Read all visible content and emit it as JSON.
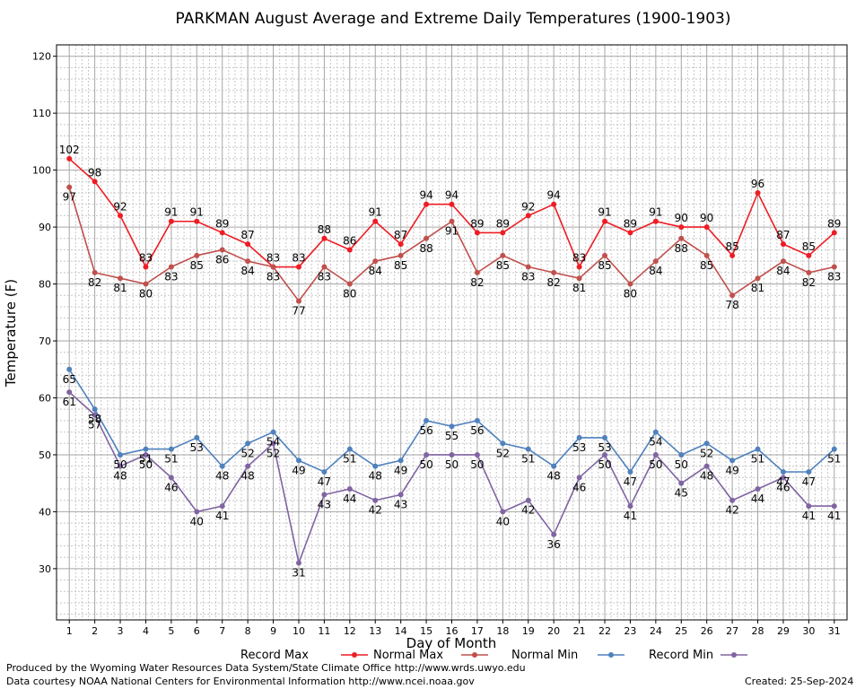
{
  "chart_data": {
    "type": "line",
    "title": "PARKMAN August Average and Extreme Daily Temperatures (1900-1903)",
    "xlabel": "Day of Month",
    "ylabel": "Temperature (F)",
    "x": [
      1,
      2,
      3,
      4,
      5,
      6,
      7,
      8,
      9,
      10,
      11,
      12,
      13,
      14,
      15,
      16,
      17,
      18,
      19,
      20,
      21,
      22,
      23,
      24,
      25,
      26,
      27,
      28,
      29,
      30,
      31
    ],
    "xlim": [
      0.5,
      31.5
    ],
    "ylim": [
      21,
      122
    ],
    "yticks": [
      30,
      40,
      50,
      60,
      70,
      80,
      90,
      100,
      110,
      120
    ],
    "grid": true,
    "legend_position": "bottom",
    "series": [
      {
        "name": "Record Max",
        "color": "#ee1c24",
        "values": [
          102,
          98,
          92,
          83,
          91,
          91,
          89,
          87,
          83,
          83,
          88,
          86,
          91,
          87,
          94,
          94,
          89,
          89,
          92,
          94,
          83,
          91,
          89,
          91,
          90,
          90,
          85,
          96,
          87,
          85,
          89
        ]
      },
      {
        "name": "Normal Max",
        "color": "#c0504d",
        "values": [
          97,
          82,
          81,
          80,
          83,
          85,
          86,
          84,
          83,
          77,
          83,
          80,
          84,
          85,
          88,
          91,
          82,
          85,
          83,
          82,
          81,
          85,
          80,
          84,
          88,
          85,
          78,
          81,
          84,
          82,
          83
        ]
      },
      {
        "name": "Normal Min",
        "color": "#4f81bd",
        "values": [
          65,
          58,
          50,
          51,
          51,
          53,
          48,
          52,
          54,
          49,
          47,
          51,
          48,
          49,
          56,
          55,
          56,
          52,
          51,
          48,
          53,
          53,
          47,
          54,
          50,
          52,
          49,
          51,
          47,
          47,
          51
        ]
      },
      {
        "name": "Record Min",
        "color": "#8064a2",
        "values": [
          61,
          57,
          48,
          50,
          46,
          40,
          41,
          48,
          52,
          31,
          43,
          44,
          42,
          43,
          50,
          50,
          50,
          40,
          42,
          36,
          46,
          50,
          41,
          50,
          45,
          48,
          42,
          44,
          46,
          41,
          41
        ]
      }
    ]
  },
  "footer": {
    "produced_by": "Produced by the Wyoming Water Resources Data System/State Climate Office http://www.wrds.uwyo.edu",
    "data_courtesy": "Data courtesy NOAA National Centers for Environmental Information http://www.ncei.noaa.gov",
    "created": "Created:  25-Sep-2024"
  }
}
